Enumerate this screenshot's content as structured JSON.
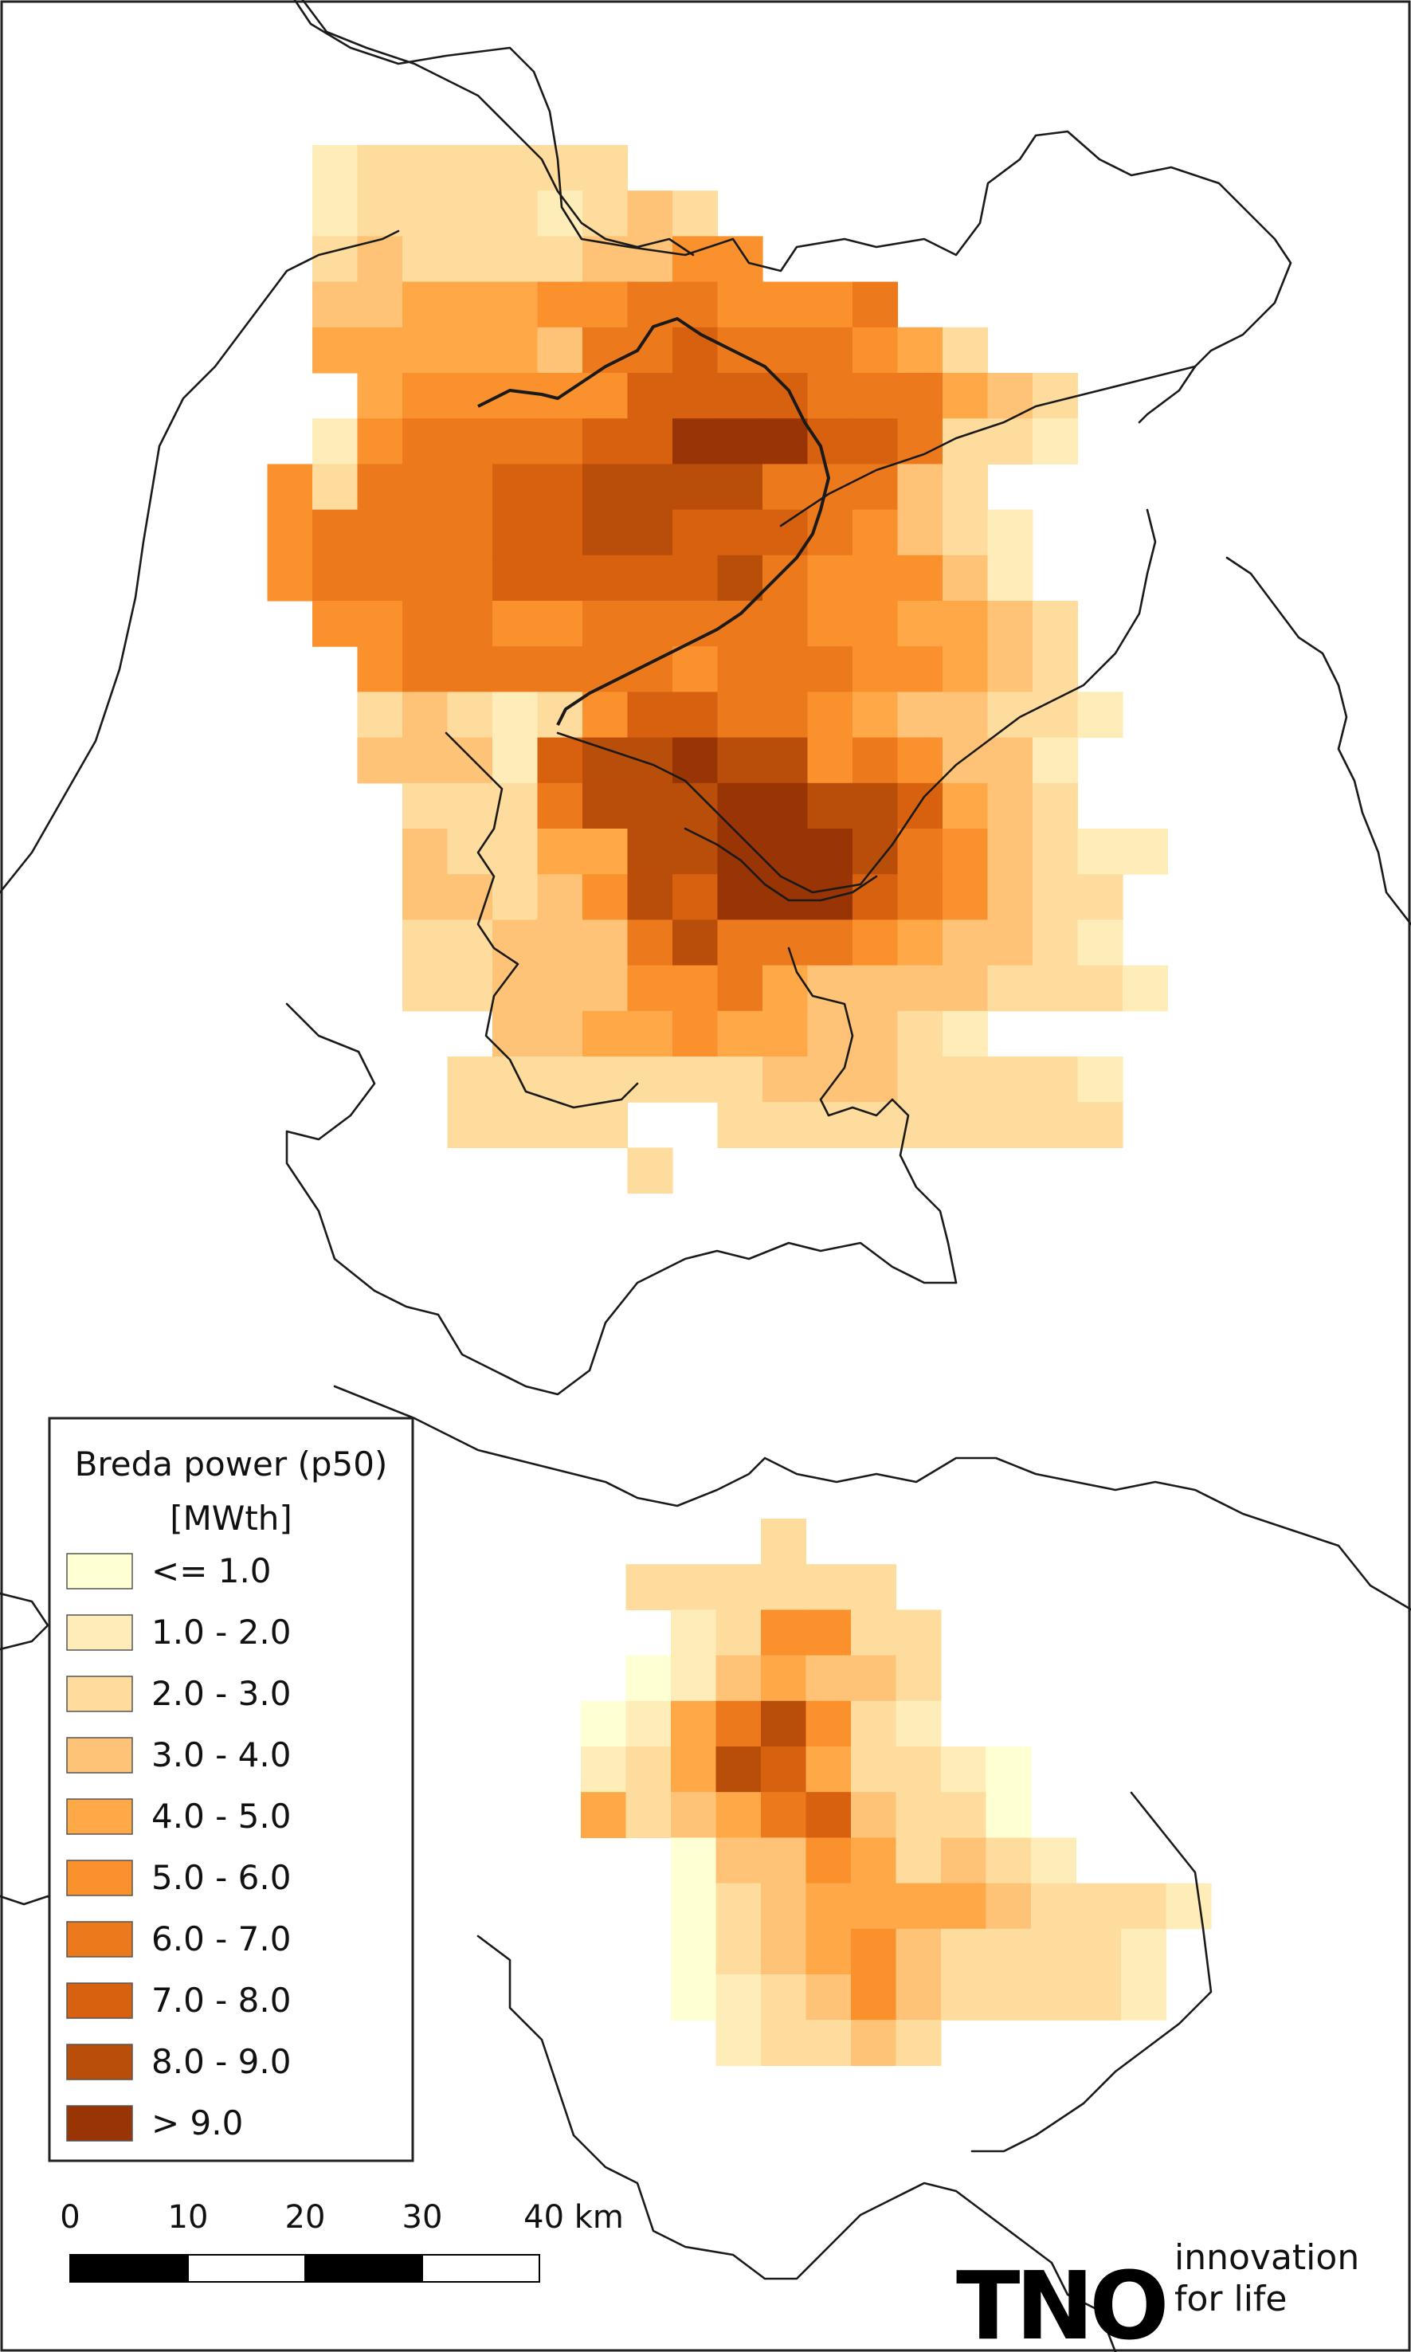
{
  "legend": {
    "title": "Breda power (p50)",
    "unit": "[MWth]",
    "classes": [
      {
        "label": "<= 1.0",
        "color": "#ffffd4"
      },
      {
        "label": "1.0 - 2.0",
        "color": "#feedb9"
      },
      {
        "label": "2.0 - 3.0",
        "color": "#fedc9e"
      },
      {
        "label": "3.0 - 4.0",
        "color": "#fec377"
      },
      {
        "label": "4.0 - 5.0",
        "color": "#fea847"
      },
      {
        "label": "5.0 - 6.0",
        "color": "#fb912d"
      },
      {
        "label": "6.0 - 7.0",
        "color": "#ed791d"
      },
      {
        "label": "7.0 - 8.0",
        "color": "#d8610f"
      },
      {
        "label": "8.0 - 9.0",
        "color": "#b94d0a"
      },
      {
        "label": "> 9.0",
        "color": "#993404"
      }
    ]
  },
  "scalebar": {
    "labels": [
      "0",
      "10",
      "20",
      "30",
      "40 km"
    ]
  },
  "branding": {
    "logo_text": "TNO",
    "tagline_line1": "innovation",
    "tagline_line2": "for life"
  }
}
